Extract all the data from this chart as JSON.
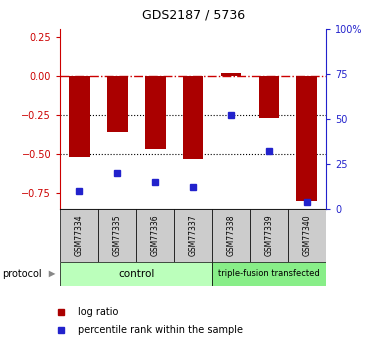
{
  "title": "GDS2187 / 5736",
  "samples": [
    "GSM77334",
    "GSM77335",
    "GSM77336",
    "GSM77337",
    "GSM77338",
    "GSM77339",
    "GSM77340"
  ],
  "log_ratio": [
    -0.52,
    -0.36,
    -0.47,
    -0.53,
    0.02,
    -0.27,
    -0.8
  ],
  "percentile_rank": [
    10,
    20,
    15,
    12,
    52,
    32,
    4
  ],
  "control_indices": [
    0,
    1,
    2,
    3
  ],
  "tf_indices": [
    4,
    5,
    6
  ],
  "control_label": "control",
  "tf_label": "triple-fusion transfected",
  "control_color": "#bbffbb",
  "tf_color": "#88ee88",
  "bar_color": "#aa0000",
  "dot_color": "#2222cc",
  "ylim_left": [
    -0.85,
    0.3
  ],
  "ylim_right": [
    0,
    100
  ],
  "yticks_left": [
    0.25,
    0.0,
    -0.25,
    -0.5,
    -0.75
  ],
  "yticks_right": [
    100,
    75,
    50,
    25,
    0
  ],
  "hline_color": "#cc0000",
  "dotted_lines": [
    -0.25,
    -0.5
  ],
  "bar_width": 0.55,
  "legend_label_ratio": "log ratio",
  "legend_label_pct": "percentile rank within the sample",
  "protocol_label": "protocol",
  "sample_box_color": "#cccccc",
  "title_fontsize": 9,
  "tick_fontsize": 7,
  "legend_fontsize": 7
}
